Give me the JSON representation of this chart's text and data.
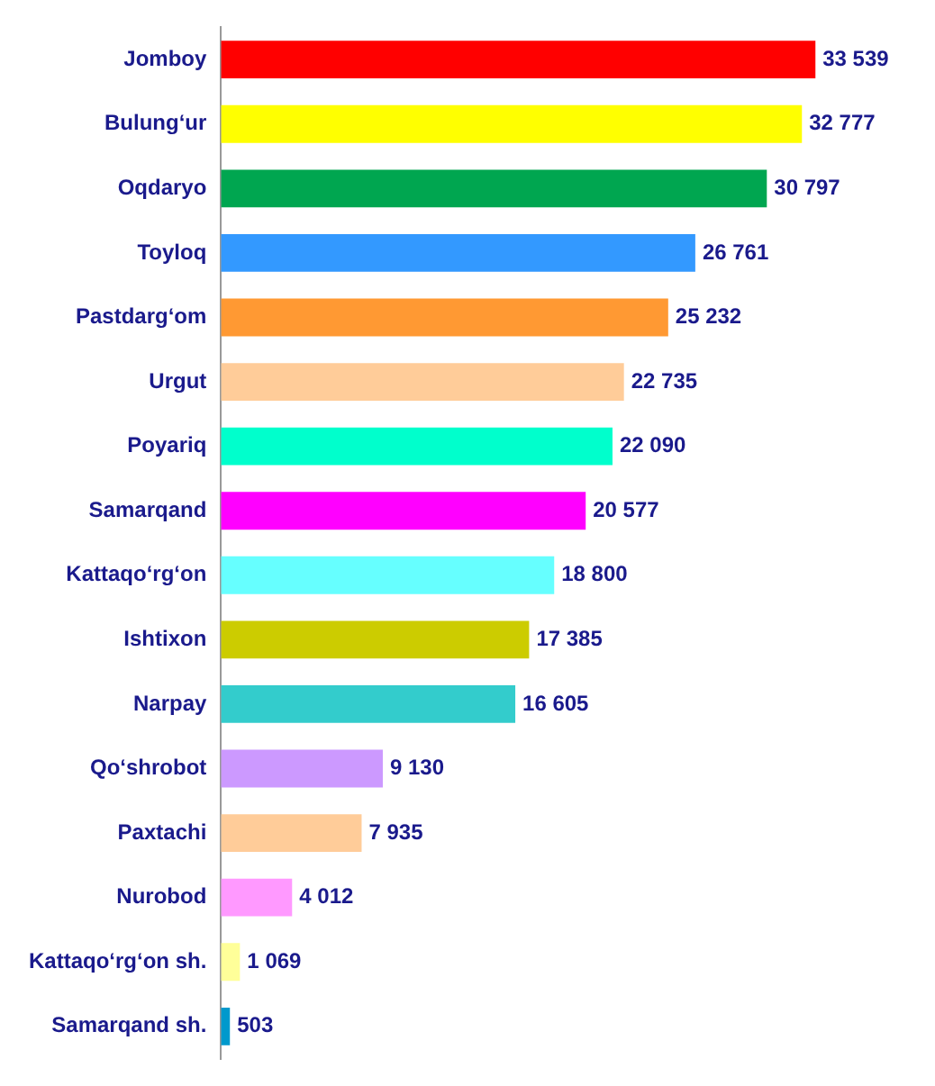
{
  "chart_data": {
    "type": "bar",
    "orientation": "horizontal",
    "categories": [
      "Jomboy",
      "Bulung‘ur",
      "Oqdaryo",
      "Toyloq",
      "Pastdarg‘om",
      "Urgut",
      "Poyariq",
      "Samarqand",
      "Kattaqo‘rg‘on",
      "Ishtixon",
      "Narpay",
      "Qo‘shrobot",
      "Paxtachi",
      "Nurobod",
      "Kattaqo‘rg‘on sh.",
      "Samarqand sh."
    ],
    "values": [
      33539,
      32777,
      30797,
      26761,
      25232,
      22735,
      22090,
      20577,
      18800,
      17385,
      16605,
      9130,
      7935,
      4012,
      1069,
      503
    ],
    "value_labels": [
      "33 539",
      "32 777",
      "30 797",
      "26 761",
      "25 232",
      "22 735",
      "22 090",
      "20 577",
      "18 800",
      "17 385",
      "16 605",
      "9 130",
      "7 935",
      "4 012",
      "1 069",
      "503"
    ],
    "colors": [
      "#ff0000",
      "#ffff00",
      "#00a650",
      "#3399ff",
      "#ff9933",
      "#ffcc99",
      "#00ffcc",
      "#ff00ff",
      "#66ffff",
      "#cccc00",
      "#33cccc",
      "#cc99ff",
      "#ffcc99",
      "#ff99ff",
      "#ffff99",
      "#0099cc"
    ],
    "tick_labels": "y",
    "grid": false,
    "legend": false
  }
}
